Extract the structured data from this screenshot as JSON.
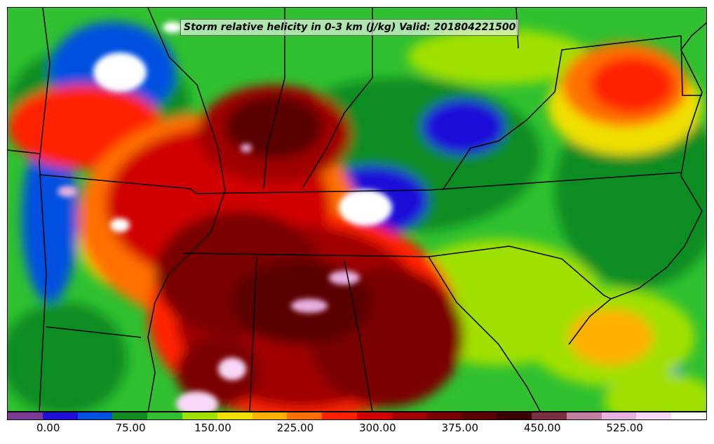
{
  "map": {
    "title": "Storm relative helicity in 0-3 km (J/kg) Valid: 201804221500",
    "field": "storm relative helicity 0-3 km",
    "units": "J/kg",
    "region": "southeastern United States"
  },
  "colorbar": {
    "colors": [
      "#7b3a96",
      "#1e10d8",
      "#0050e0",
      "#108c20",
      "#30c030",
      "#a0e000",
      "#f0e000",
      "#ffb000",
      "#ff7000",
      "#ff2000",
      "#d00000",
      "#a00000",
      "#7a0000",
      "#5a0000",
      "#3a0000",
      "#7a3040",
      "#c080a0",
      "#e8b0e0",
      "#f8d8f8",
      "#ffffff"
    ],
    "tick_labels": [
      "0.00",
      "75.00",
      "150.00",
      "225.00",
      "300.00",
      "375.00",
      "450.00",
      "525.00"
    ],
    "tick_values": [
      0,
      75,
      150,
      225,
      300,
      375,
      450,
      525
    ],
    "range": [
      -37.5,
      600
    ]
  }
}
